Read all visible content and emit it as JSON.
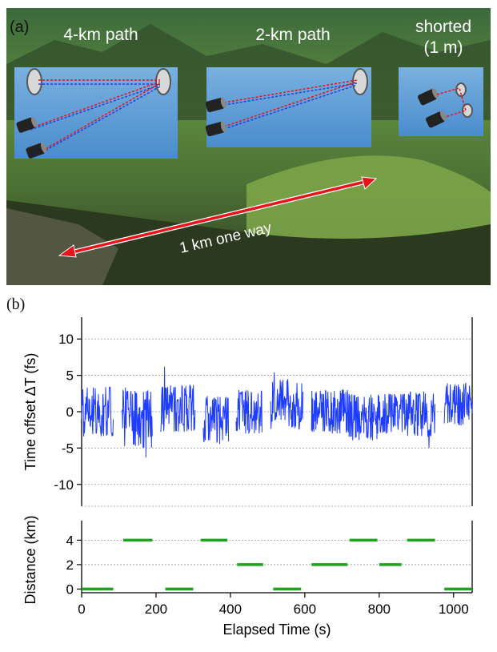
{
  "photo": {
    "panel_label": "(a)",
    "inset_labels": [
      "4-km path",
      "2-km path",
      "shorted",
      "(1 m)"
    ],
    "arrow_label": "1 km one way",
    "colors": {
      "inset_fill": "#5b9bd5",
      "arrow": "#e8141b",
      "beam_red": "#e8141b",
      "beam_blue": "#2b3ed8"
    }
  },
  "chart_data": [
    {
      "type": "line",
      "panel_label": "(b)",
      "ylabel": "Time offset ΔT (fs)",
      "ylim": [
        -13,
        13
      ],
      "yticks": [
        10,
        5,
        0,
        -5,
        -10
      ],
      "xlim": [
        0,
        1050
      ],
      "grid": "horizontal dashed",
      "color": "#1f3dff",
      "series": [
        {
          "segments": [
            {
              "x": [
                0,
                85
              ],
              "low": -3.5,
              "high": 3.5
            },
            {
              "x": [
                108,
                190
              ],
              "low": -5,
              "high": 3,
              "min_spike": -6.3,
              "max_spike": 3.3
            },
            {
              "x": [
                212,
                305
              ],
              "low": -2.8,
              "high": 3.8,
              "max_spike": 6.2
            },
            {
              "x": [
                327,
                395
              ],
              "low": -4.5,
              "high": 2.2
            },
            {
              "x": [
                415,
                485
              ],
              "low": -3,
              "high": 3
            },
            {
              "x": [
                508,
                595
              ],
              "low": -2.5,
              "high": 4.5,
              "max_spike": 5.4
            },
            {
              "x": [
                618,
                720
              ],
              "low": -3,
              "high": 3
            },
            {
              "x": [
                718,
                795
              ],
              "low": -4,
              "high": 2.5
            },
            {
              "x": [
                795,
                870
              ],
              "low": -3,
              "high": 2.5
            },
            {
              "x": [
                870,
                950
              ],
              "low": -3.5,
              "high": 2.8,
              "min_spike": -5
            },
            {
              "x": [
                975,
                1050
              ],
              "low": -2,
              "high": 4
            }
          ]
        }
      ]
    },
    {
      "type": "line",
      "ylabel": "Distance (km)",
      "xlabel": "Elapsed Time (s)",
      "ylim": [
        -0.3,
        5.6
      ],
      "yticks": [
        4,
        2,
        0
      ],
      "xlim": [
        0,
        1050
      ],
      "xticks": [
        0,
        200,
        400,
        600,
        800,
        1000
      ],
      "grid": "horizontal dashed",
      "color": "#1fa31f",
      "series": [
        {
          "segments": [
            {
              "x": [
                0,
                85
              ],
              "y": 0
            },
            {
              "x": [
                112,
                190
              ],
              "y": 4
            },
            {
              "x": [
                225,
                300
              ],
              "y": 0
            },
            {
              "x": [
                320,
                392
              ],
              "y": 4
            },
            {
              "x": [
                418,
                488
              ],
              "y": 2
            },
            {
              "x": [
                515,
                590
              ],
              "y": 0
            },
            {
              "x": [
                618,
                715
              ],
              "y": 2
            },
            {
              "x": [
                720,
                795
              ],
              "y": 4
            },
            {
              "x": [
                800,
                860
              ],
              "y": 2
            },
            {
              "x": [
                875,
                950
              ],
              "y": 4
            },
            {
              "x": [
                975,
                1050
              ],
              "y": 0
            }
          ]
        }
      ]
    }
  ]
}
